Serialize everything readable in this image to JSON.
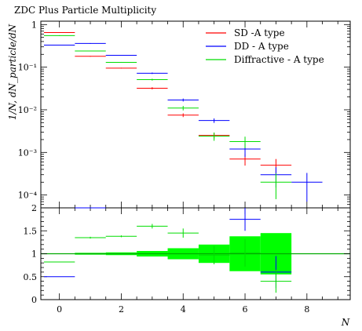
{
  "chart_data": [
    {
      "type": "line",
      "title": "ZDC Plus Particle Multiplicity",
      "xlabel": "N",
      "ylabel": "1/N, dN_particle/dN",
      "xlim": [
        -0.6,
        9.4
      ],
      "ylim": [
        5e-05,
        1.2
      ],
      "yscale": "log",
      "ytick_labels": [
        "10⁻⁴",
        "10⁻³",
        "10⁻²",
        "10⁻¹",
        "1"
      ],
      "ytick_values": [
        0.0001,
        0.001,
        0.01,
        0.1,
        1
      ],
      "legend_position": "top-right",
      "series": [
        {
          "name": "SD -A type",
          "color": "#ff0000",
          "points": [
            {
              "x": 0,
              "y": 0.65,
              "xerr": 0.5,
              "yerr_rel": 0.02
            },
            {
              "x": 1,
              "y": 0.18,
              "xerr": 0.5,
              "yerr_rel": 0.02
            },
            {
              "x": 2,
              "y": 0.095,
              "xerr": 0.5,
              "yerr_rel": 0.02
            },
            {
              "x": 3,
              "y": 0.032,
              "xerr": 0.5,
              "yerr_rel": 0.06
            },
            {
              "x": 4,
              "y": 0.0075,
              "xerr": 0.5,
              "yerr_rel": 0.1
            },
            {
              "x": 5,
              "y": 0.0025,
              "xerr": 0.5,
              "yerr_rel": 0.15
            },
            {
              "x": 6,
              "y": 0.0007,
              "xerr": 0.5,
              "yerr_rel": 0.3
            },
            {
              "x": 7,
              "y": 0.0005,
              "xerr": 0.5,
              "yerr_rel": 0.4
            }
          ]
        },
        {
          "name": "DD - A type",
          "color": "#0000ff",
          "points": [
            {
              "x": 0,
              "y": 0.33,
              "xerr": 0.5,
              "yerr_rel": 0.02
            },
            {
              "x": 1,
              "y": 0.36,
              "xerr": 0.5,
              "yerr_rel": 0.02
            },
            {
              "x": 2,
              "y": 0.19,
              "xerr": 0.5,
              "yerr_rel": 0.02
            },
            {
              "x": 3,
              "y": 0.072,
              "xerr": 0.5,
              "yerr_rel": 0.04
            },
            {
              "x": 4,
              "y": 0.017,
              "xerr": 0.5,
              "yerr_rel": 0.08
            },
            {
              "x": 5,
              "y": 0.0056,
              "xerr": 0.5,
              "yerr_rel": 0.12
            },
            {
              "x": 6,
              "y": 0.0012,
              "xerr": 0.5,
              "yerr_rel": 0.35
            },
            {
              "x": 7,
              "y": 0.0003,
              "xerr": 0.5,
              "yerr_rel": 0.5
            },
            {
              "x": 8,
              "y": 0.0002,
              "xerr": 0.5,
              "yerr_rel": 0.65
            }
          ]
        },
        {
          "name": "Diffractive - A type",
          "color": "#00dd00",
          "points": [
            {
              "x": 0,
              "y": 0.55,
              "xerr": 0.5,
              "yerr_rel": 0.02
            },
            {
              "x": 1,
              "y": 0.24,
              "xerr": 0.5,
              "yerr_rel": 0.02
            },
            {
              "x": 2,
              "y": 0.13,
              "xerr": 0.5,
              "yerr_rel": 0.02
            },
            {
              "x": 3,
              "y": 0.051,
              "xerr": 0.5,
              "yerr_rel": 0.05
            },
            {
              "x": 4,
              "y": 0.011,
              "xerr": 0.5,
              "yerr_rel": 0.12
            },
            {
              "x": 5,
              "y": 0.0024,
              "xerr": 0.5,
              "yerr_rel": 0.22
            },
            {
              "x": 6,
              "y": 0.0018,
              "xerr": 0.5,
              "yerr_rel": 0.3
            },
            {
              "x": 7,
              "y": 0.0002,
              "xerr": 0.5,
              "yerr_rel": 0.6
            }
          ]
        }
      ]
    },
    {
      "type": "line",
      "title": "",
      "xlabel": "N",
      "ylabel": "",
      "xlim": [
        -0.6,
        9.4
      ],
      "ylim": [
        0,
        2
      ],
      "ytick_labels": [
        "0",
        "0.5",
        "1",
        "1.5",
        "2"
      ],
      "ytick_values": [
        0,
        0.5,
        1,
        1.5,
        2
      ],
      "xtick_labels": [
        "0",
        "2",
        "4",
        "6",
        "8"
      ],
      "xtick_values": [
        0,
        2,
        4,
        6,
        8
      ],
      "reference_line": {
        "y": 1,
        "color": "#00aa00"
      },
      "uncertainty_band": {
        "color": "#00ff00",
        "bins": [
          {
            "xlo": 0.5,
            "xhi": 1.5,
            "lo": 0.98,
            "hi": 1.02
          },
          {
            "xlo": 1.5,
            "xhi": 2.5,
            "lo": 0.97,
            "hi": 1.03
          },
          {
            "xlo": 2.5,
            "xhi": 3.5,
            "lo": 0.94,
            "hi": 1.06
          },
          {
            "xlo": 3.5,
            "xhi": 4.5,
            "lo": 0.88,
            "hi": 1.12
          },
          {
            "xlo": 4.5,
            "xhi": 5.5,
            "lo": 0.8,
            "hi": 1.2
          },
          {
            "xlo": 5.5,
            "xhi": 6.5,
            "lo": 0.62,
            "hi": 1.38
          },
          {
            "xlo": 6.5,
            "xhi": 7.5,
            "lo": 0.55,
            "hi": 1.45
          }
        ]
      },
      "series": [
        {
          "color": "#0000ff",
          "points": [
            {
              "x": 0,
              "y": 0.5,
              "xerr": 0.5,
              "yerr": 0.0
            },
            {
              "x": 1,
              "y": 2.0,
              "xerr": 0.5,
              "yerr": 0.0
            },
            {
              "x": 6,
              "y": 1.75,
              "xerr": 0.5,
              "yerr": 0.25
            },
            {
              "x": 7,
              "y": 0.6,
              "xerr": 0.5,
              "yerr": 0.35
            }
          ]
        },
        {
          "color": "#00dd00",
          "points": [
            {
              "x": 0,
              "y": 0.82,
              "xerr": 0.5,
              "yerr": 0.0
            },
            {
              "x": 1,
              "y": 1.35,
              "xerr": 0.5,
              "yerr": 0.02
            },
            {
              "x": 2,
              "y": 1.38,
              "xerr": 0.5,
              "yerr": 0.02
            },
            {
              "x": 3,
              "y": 1.6,
              "xerr": 0.5,
              "yerr": 0.05
            },
            {
              "x": 4,
              "y": 1.45,
              "xerr": 0.5,
              "yerr": 0.1
            },
            {
              "x": 5,
              "y": 0.97,
              "xerr": 0.5,
              "yerr": 0.2
            },
            {
              "x": 6,
              "y": 1.02,
              "xerr": 0.5,
              "yerr": 0.3
            },
            {
              "x": 7,
              "y": 0.4,
              "xerr": 0.5,
              "yerr": 0.25
            }
          ]
        }
      ]
    }
  ]
}
